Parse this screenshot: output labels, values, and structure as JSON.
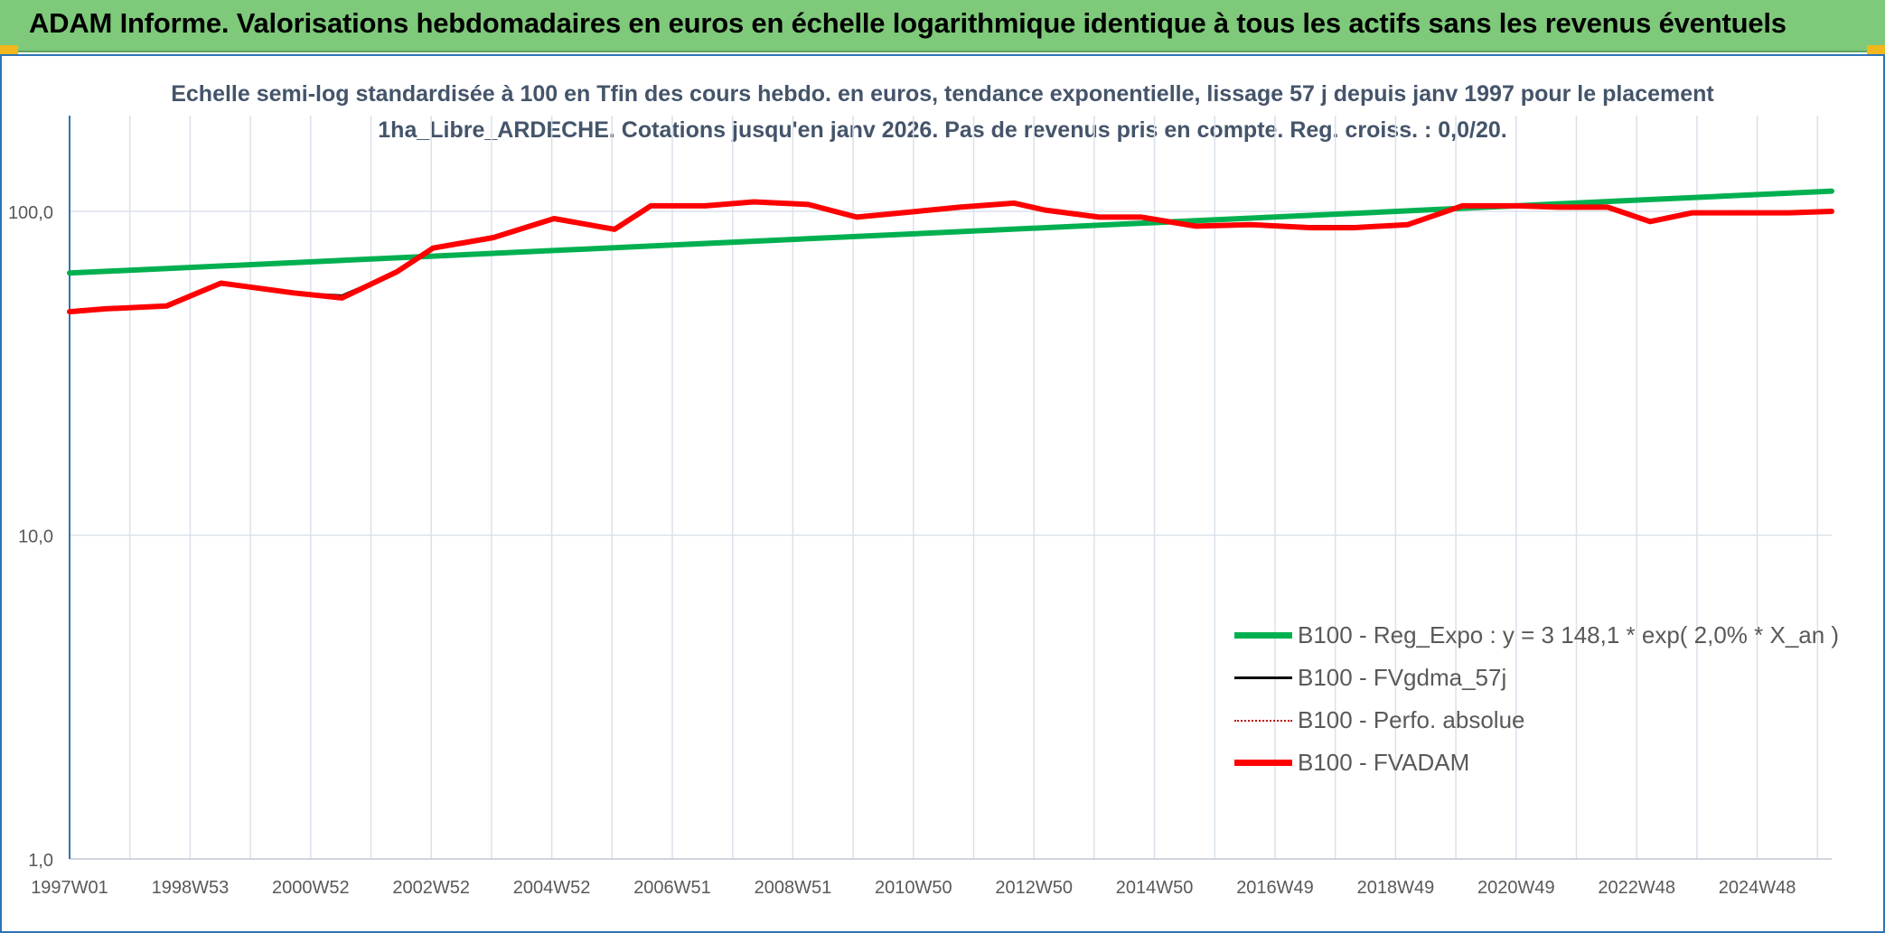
{
  "header": {
    "title": "ADAM Informe. Valorisations hebdomadaires en euros en échelle logarithmique identique à tous les actifs sans les revenus éventuels"
  },
  "chart_data": {
    "type": "line",
    "title": "Echelle semi-log standardisée à 100 en Tfin des cours hebdo. en euros, tendance exponentielle, lissage 57 j depuis janv 1997 pour le placement 1ha_Libre_ARDECHE. Cotations jusqu'en janv 2026. Pas de revenus pris en compte. Reg. croiss. : 0,0/20.",
    "xlabel": "",
    "ylabel": "",
    "y_scale": "log",
    "ylim": [
      1,
      170
    ],
    "y_ticks": [
      "1,0",
      "10,0",
      "100,0"
    ],
    "x_tick_labels": [
      "1997W01",
      "1998W53",
      "2000W52",
      "2002W52",
      "2004W52",
      "2006W51",
      "2008W51",
      "2010W50",
      "2012W50",
      "2014W50",
      "2016W49",
      "2018W49",
      "2020W49",
      "2022W48",
      "2024W48"
    ],
    "grid": true,
    "legend_position": "lower-right",
    "series": [
      {
        "name": "B100 - Reg_Expo : y = 3 148,1 * exp( 2,0% *  X_an )",
        "color": "#00b050",
        "style": "solid-thick",
        "x": [
          1997.0,
          2026.1
        ],
        "values": [
          64.5,
          115.5
        ]
      },
      {
        "name": "B100 - FVgdma_57j",
        "color": "#000000",
        "style": "solid-thin",
        "x": [
          1997.0,
          1997.6,
          1998.6,
          1999.5,
          2000.7,
          2001.5,
          2002.4,
          2003.0,
          2004.0,
          2005.0,
          2006.0,
          2006.6,
          2007.5,
          2008.3,
          2009.2,
          2010.0,
          2011.0,
          2011.7,
          2012.6,
          2013.1,
          2014.0,
          2014.7,
          2015.6,
          2016.5,
          2017.5,
          2018.2,
          2019.1,
          2020.0,
          2020.9,
          2021.6,
          2022.4,
          2023.1,
          2023.8,
          2024.6,
          2025.4,
          2026.1
        ],
        "values": [
          49,
          50,
          51,
          60,
          56,
          55,
          65,
          77,
          83,
          95,
          89,
          104,
          104,
          107,
          105,
          97,
          100,
          103,
          106,
          101,
          96,
          96,
          91,
          91,
          90,
          90,
          91,
          104,
          104,
          103,
          103,
          93,
          99,
          100,
          99,
          100
        ]
      },
      {
        "name": "B100 - Perfo. absolue",
        "color": "#c00000",
        "style": "dotted",
        "x": [],
        "values": []
      },
      {
        "name": "B100 - FVADAM",
        "color": "#ff0000",
        "style": "solid-thick",
        "x": [
          1997.0,
          1997.6,
          1998.6,
          1999.5,
          2000.7,
          2001.5,
          2002.4,
          2003.0,
          2004.0,
          2005.0,
          2006.0,
          2006.6,
          2007.5,
          2008.3,
          2009.2,
          2010.0,
          2011.0,
          2011.7,
          2012.6,
          2013.1,
          2014.0,
          2014.7,
          2015.6,
          2016.5,
          2017.5,
          2018.2,
          2019.1,
          2020.0,
          2020.9,
          2021.6,
          2022.4,
          2023.1,
          2023.8,
          2024.6,
          2025.4,
          2026.1
        ],
        "values": [
          49,
          50,
          51,
          60,
          56,
          54,
          65,
          77,
          83,
          95,
          88,
          104,
          104,
          107,
          105,
          96,
          100,
          103,
          106,
          101,
          96,
          96,
          90,
          91,
          89,
          89,
          91,
          104,
          104,
          103,
          103,
          93,
          99,
          99,
          99,
          100
        ]
      }
    ]
  }
}
